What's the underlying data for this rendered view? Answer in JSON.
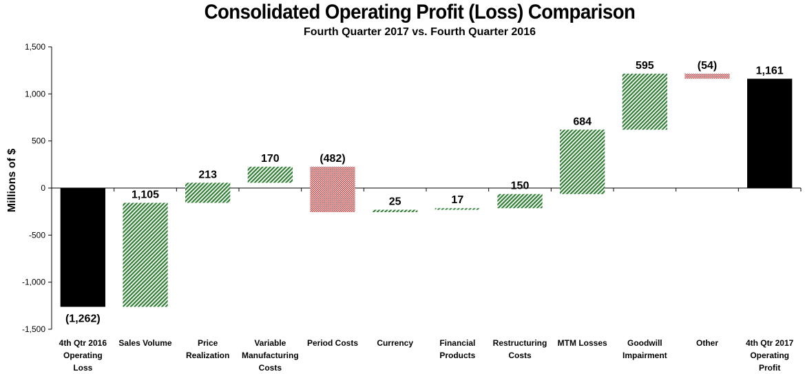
{
  "chart_data": {
    "type": "waterfall",
    "title": "Consolidated Operating Profit (Loss) Comparison",
    "subtitle": "Fourth Quarter 2017 vs. Fourth Quarter 2016",
    "ylabel": "Millions of $",
    "xlabel": "",
    "ylim": [
      -1500,
      1500
    ],
    "yticks": [
      1500,
      1000,
      500,
      0,
      -500,
      -1000,
      -1500
    ],
    "ytick_labels": [
      "1,500",
      "1,000",
      "500",
      "0",
      "-500",
      "-1,000",
      "-1,500"
    ],
    "grid": false,
    "colors": {
      "total": "#000000",
      "increase": "#2e7d32",
      "decrease": "#c62828"
    },
    "bars": [
      {
        "category": [
          "4th Qtr 2016",
          "Operating",
          "Loss"
        ],
        "kind": "total",
        "start": 0,
        "end": -1262,
        "label": "(1,262)",
        "label_pos": "below"
      },
      {
        "category": [
          "Sales Volume"
        ],
        "kind": "increase",
        "start": -1262,
        "end": -157,
        "label": "1,105",
        "label_pos": "above"
      },
      {
        "category": [
          "Price",
          "Realization"
        ],
        "kind": "increase",
        "start": -157,
        "end": 56,
        "label": "213",
        "label_pos": "above"
      },
      {
        "category": [
          "Variable",
          "Manufacturing",
          "Costs"
        ],
        "kind": "increase",
        "start": 56,
        "end": 226,
        "label": "170",
        "label_pos": "above"
      },
      {
        "category": [
          "Period Costs"
        ],
        "kind": "decrease",
        "start": 226,
        "end": -256,
        "label": "(482)",
        "label_pos": "above"
      },
      {
        "category": [
          "Currency"
        ],
        "kind": "increase",
        "start": -256,
        "end": -231,
        "label": "25",
        "label_pos": "above"
      },
      {
        "category": [
          "Financial",
          "Products"
        ],
        "kind": "increase",
        "start": -231,
        "end": -214,
        "label": "17",
        "label_pos": "above"
      },
      {
        "category": [
          "Restructuring",
          "Costs"
        ],
        "kind": "increase",
        "start": -214,
        "end": -64,
        "label": "150",
        "label_pos": "above"
      },
      {
        "category": [
          "MTM Losses"
        ],
        "kind": "increase",
        "start": -64,
        "end": 620,
        "label": "684",
        "label_pos": "above"
      },
      {
        "category": [
          "Goodwill",
          "Impairment"
        ],
        "kind": "increase",
        "start": 620,
        "end": 1215,
        "label": "595",
        "label_pos": "above"
      },
      {
        "category": [
          "Other"
        ],
        "kind": "decrease",
        "start": 1215,
        "end": 1161,
        "label": "(54)",
        "label_pos": "above"
      },
      {
        "category": [
          "4th Qtr 2017",
          "Operating",
          "Profit"
        ],
        "kind": "total",
        "start": 0,
        "end": 1161,
        "label": "1,161",
        "label_pos": "above"
      }
    ]
  }
}
